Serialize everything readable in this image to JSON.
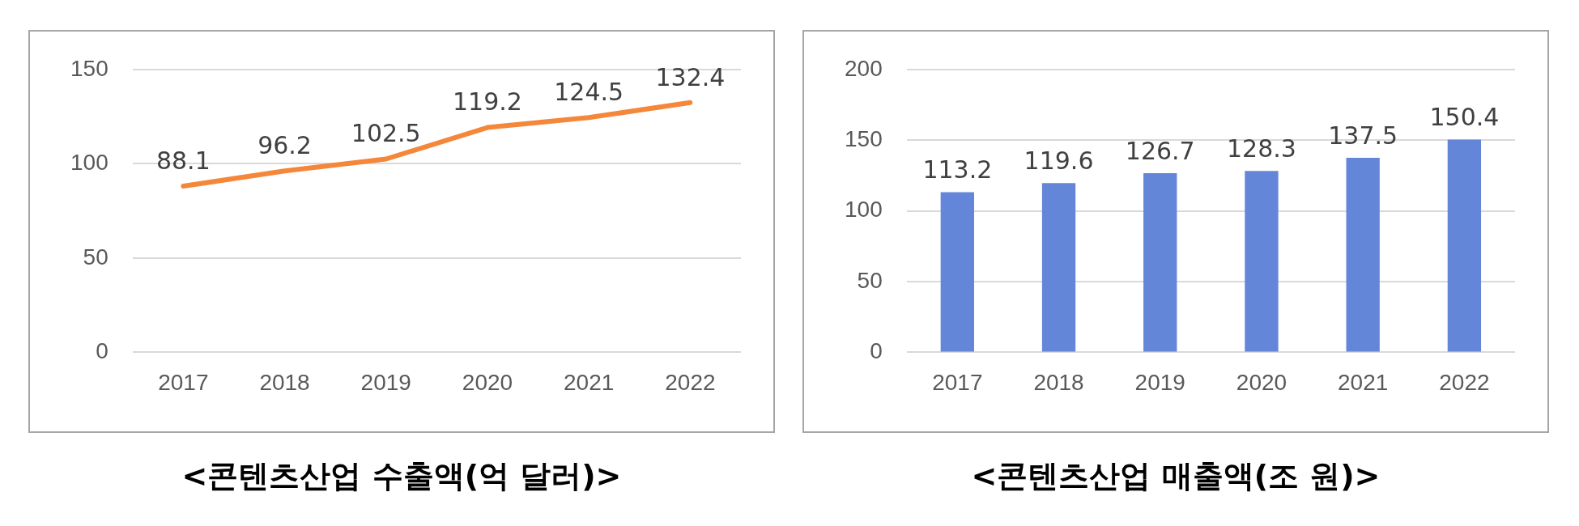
{
  "chart_data": [
    {
      "type": "line",
      "title": "<콘텐츠산업 수출액(억 달러)>",
      "categories": [
        "2017",
        "2018",
        "2019",
        "2020",
        "2021",
        "2022"
      ],
      "series": [
        {
          "color": "#f4873a",
          "values": [
            88.1,
            96.2,
            102.5,
            119.2,
            124.5,
            132.4
          ]
        }
      ],
      "ylim": [
        0,
        150
      ],
      "yticks": [
        0,
        50,
        100,
        150
      ],
      "grid": "y",
      "marker": "none",
      "line_style": "solid",
      "data_labels": true
    },
    {
      "type": "bar",
      "title": "<콘텐츠산업 매출액(조 원)>",
      "categories": [
        "2017",
        "2018",
        "2019",
        "2020",
        "2021",
        "2022"
      ],
      "series": [
        {
          "color": "#6486d8",
          "values": [
            113.2,
            119.6,
            126.7,
            128.3,
            137.5,
            150.4
          ]
        }
      ],
      "ylim": [
        0,
        200
      ],
      "yticks": [
        0,
        50,
        100,
        150,
        200
      ],
      "grid": "y",
      "data_labels": true
    }
  ]
}
